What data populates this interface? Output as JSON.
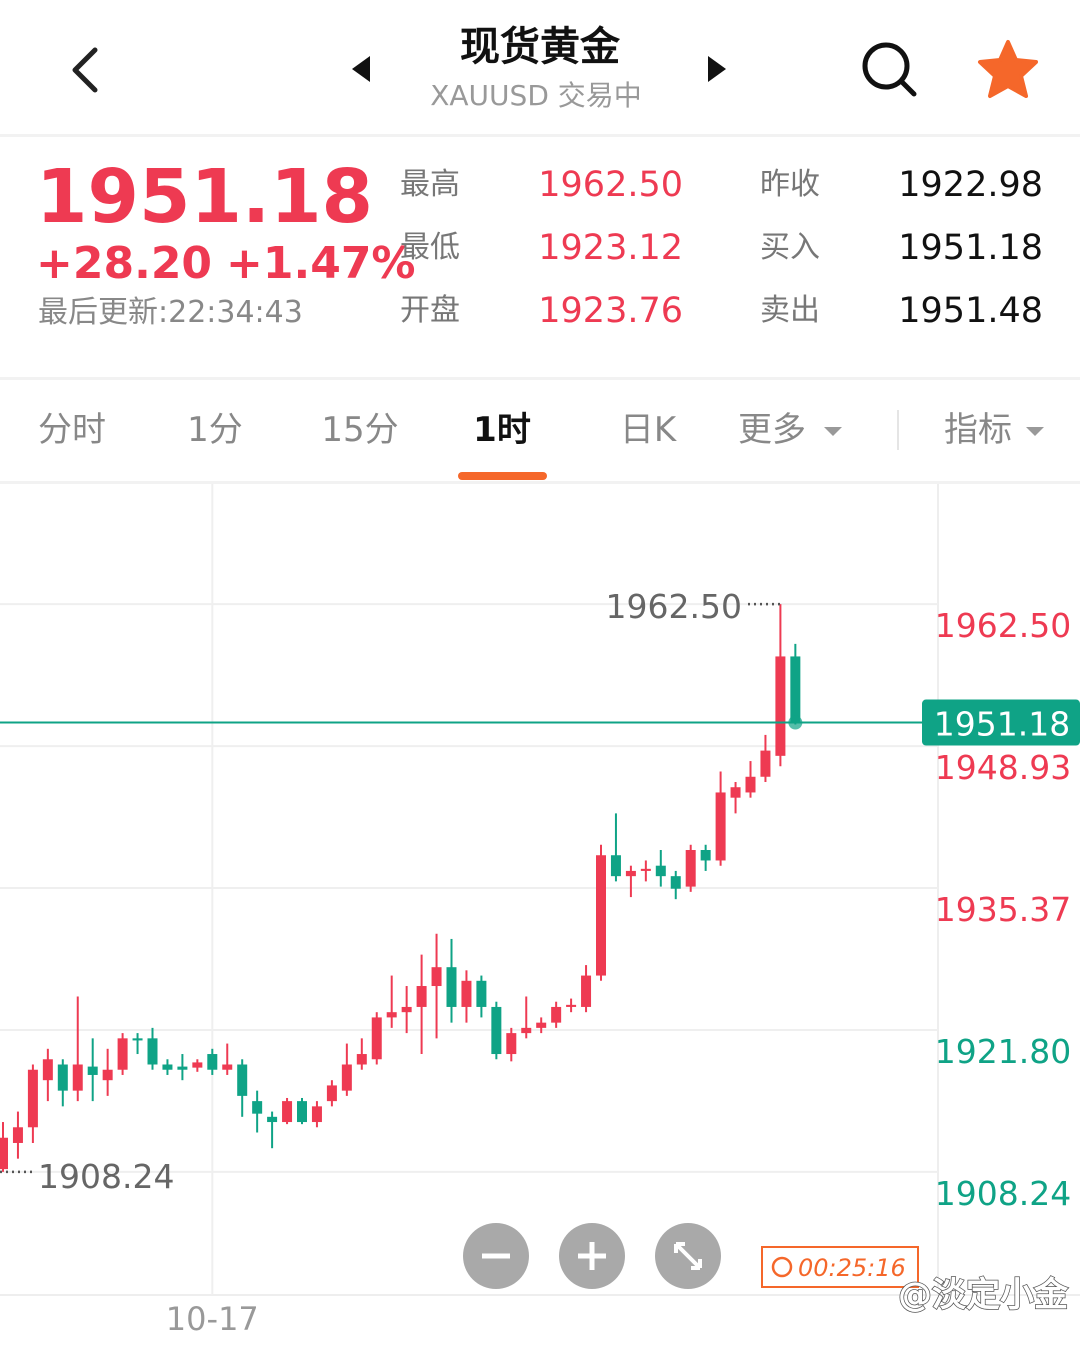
{
  "header": {
    "title": "现货黄金",
    "subtitle": "XAUUSD 交易中"
  },
  "quote": {
    "price": "1951.18",
    "change": "+28.20",
    "change_pct": "+1.47%",
    "updated": "最后更新:22:34:43",
    "stats": [
      {
        "label": "最高",
        "value": "1962.50"
      },
      {
        "label": "最低",
        "value": "1923.12"
      },
      {
        "label": "开盘",
        "value": "1923.76"
      },
      {
        "label": "昨收",
        "value": "1922.98"
      },
      {
        "label": "买入",
        "value": "1951.18"
      },
      {
        "label": "卖出",
        "value": "1951.48"
      }
    ]
  },
  "tabs": [
    "分时",
    "1分",
    "15分",
    "1时",
    "日K",
    "更多",
    "指标"
  ],
  "active_tab": 3,
  "chart_data": {
    "type": "candlestick",
    "categories": [
      null,
      null,
      null,
      null,
      null,
      null,
      null,
      null,
      null,
      null,
      null,
      null,
      null,
      null,
      "10-17",
      null,
      null,
      null,
      null,
      null,
      null,
      null,
      null,
      null,
      null,
      null,
      null,
      null,
      null,
      null,
      null,
      null,
      null,
      null,
      null,
      null,
      null,
      null,
      null,
      null,
      null,
      null,
      null,
      null,
      null,
      null,
      null,
      null,
      null,
      null,
      null,
      null,
      null,
      null
    ],
    "open": [
      1908.5,
      1911,
      1912.5,
      1917,
      1918.5,
      1916,
      1918.3,
      1917,
      1918,
      1921,
      1921,
      1918.5,
      1918.3,
      1918.2,
      1919.5,
      1918,
      1918.5,
      1915,
      1913.5,
      1913,
      1915,
      1913,
      1915,
      1916,
      1918.5,
      1919,
      1923,
      1923.5,
      1924,
      1926,
      1927.8,
      1924,
      1926.5,
      1924,
      1919.5,
      1921.5,
      1922,
      1922.5,
      1924,
      1924,
      1927,
      1938.5,
      1936.5,
      1937,
      1937.5,
      1936.5,
      1935.5,
      1939,
      1938,
      1944,
      1944.5,
      1946,
      1948,
      1957.5
    ],
    "high": [
      1913,
      1914,
      1918.5,
      1920,
      1919,
      1925,
      1921,
      1920,
      1921.5,
      1921.5,
      1922,
      1919,
      1919.5,
      1919,
      1920,
      1920.5,
      1919,
      1916,
      1914,
      1915.3,
      1915.3,
      1915,
      1917,
      1920.5,
      1921,
      1923.5,
      1927,
      1926,
      1929,
      1931,
      1930.5,
      1927.5,
      1927,
      1924.5,
      1922,
      1925,
      1923,
      1924.5,
      1924.8,
      1928,
      1939.5,
      1942.5,
      1937.5,
      1938,
      1939,
      1937,
      1939.5,
      1939.5,
      1946.5,
      1945.5,
      1947.5,
      1950,
      1962.5,
      1958.7
    ],
    "low": [
      1908.24,
      1909.5,
      1911,
      1915,
      1914.5,
      1915,
      1915,
      1915.5,
      1917.5,
      1919.5,
      1918,
      1917.5,
      1917,
      1917.8,
      1917.5,
      1917.5,
      1913.5,
      1912,
      1910.5,
      1912.8,
      1912.8,
      1912.5,
      1914.5,
      1915.5,
      1918,
      1918.5,
      1922,
      1921.5,
      1919.5,
      1921,
      1922.5,
      1922.5,
      1923,
      1919,
      1918.8,
      1921,
      1921.5,
      1922,
      1923.5,
      1923.5,
      1926.5,
      1936,
      1934.5,
      1936,
      1935.5,
      1934.3,
      1935,
      1937,
      1937.5,
      1942.5,
      1944,
      1945.5,
      1947,
      1951
    ],
    "close": [
      1911.5,
      1912.5,
      1918,
      1919,
      1916,
      1918.5,
      1917.5,
      1918,
      1921,
      1920.8,
      1918.5,
      1918,
      1918,
      1918.7,
      1918,
      1918.5,
      1915.5,
      1913.8,
      1913,
      1915,
      1913,
      1914.5,
      1916.5,
      1918.5,
      1919.5,
      1923,
      1923.5,
      1924,
      1926,
      1927.8,
      1924,
      1926.5,
      1924,
      1919.5,
      1921.5,
      1922,
      1922.5,
      1924,
      1924.2,
      1927,
      1938.5,
      1936.5,
      1937,
      1937.2,
      1936.5,
      1935.3,
      1939,
      1938,
      1944.5,
      1945,
      1946,
      1948.5,
      1957.5,
      1951.18
    ],
    "up_color": "#ee3a52",
    "down_color": "#0fa386",
    "ylim": [
      1896.47,
      1973.98
    ],
    "yticks": [
      {
        "value": 1962.5,
        "label": "1962.50"
      },
      1948.93,
      1935.37,
      {
        "value": 1921.8,
        "label": "1921.80"
      },
      1908.24
    ],
    "ytick_colors": [
      "#ee3a52",
      "#ee3a52",
      "#ee3a52",
      "#0fa386",
      "#0fa386"
    ],
    "grid": true,
    "current_price": 1951.18,
    "high_label": {
      "value": 1962.5,
      "label": "1962.50"
    },
    "low_label": 1908.24,
    "timer": "00:25:16"
  },
  "watermark": "@淡定小金"
}
